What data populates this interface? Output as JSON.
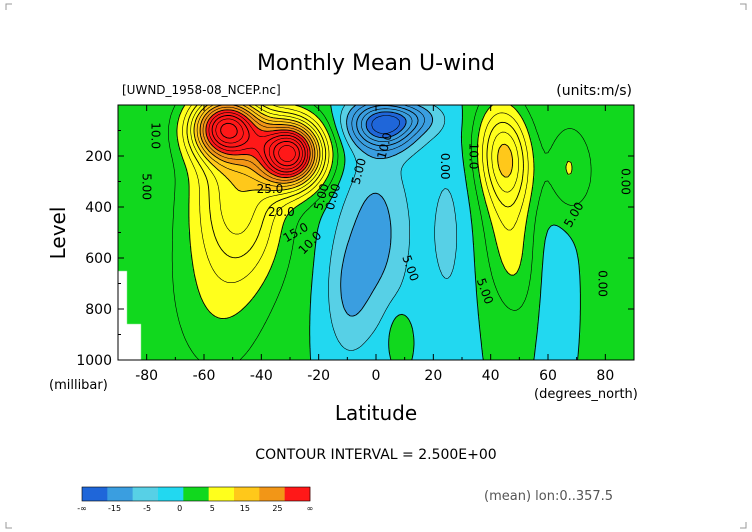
{
  "chart_data": {
    "type": "contour",
    "title": "Monthly Mean U-wind",
    "dataset_label": "[UWND_1958-08_NCEP.nc]",
    "units_label": "(units:m/s)",
    "ylabel": "Level",
    "yunit": "(millibar)",
    "xlabel": "Latitude",
    "xunit": "(degrees_north)",
    "xlim": [
      -90,
      90
    ],
    "ylim": [
      1000,
      0
    ],
    "xticks": [
      {
        "v": -80,
        "label": "-80"
      },
      {
        "v": -60,
        "label": "-60"
      },
      {
        "v": -40,
        "label": "-40"
      },
      {
        "v": -20,
        "label": "-20"
      },
      {
        "v": 0,
        "label": "0"
      },
      {
        "v": 20,
        "label": "20"
      },
      {
        "v": 40,
        "label": "40"
      },
      {
        "v": 60,
        "label": "60"
      },
      {
        "v": 80,
        "label": "80"
      }
    ],
    "yticks": [
      {
        "v": 200,
        "label": "200"
      },
      {
        "v": 400,
        "label": "400"
      },
      {
        "v": 600,
        "label": "600"
      },
      {
        "v": 800,
        "label": "800"
      },
      {
        "v": 1000,
        "label": "1000"
      }
    ],
    "contour_interval_text": "CONTOUR INTERVAL = 2.500E+00",
    "footer_text": "(mean) lon:0..357.5",
    "features": [
      {
        "type": "jet",
        "lat": -30,
        "p": 190,
        "max": 37,
        "sx": 11,
        "sp": 130,
        "skew": 0
      },
      {
        "type": "jet",
        "lat": -52,
        "p": 90,
        "max": 30,
        "sx": 12,
        "sp": 120,
        "skew": 0
      },
      {
        "type": "jet",
        "lat": -48,
        "p": 350,
        "max": 12,
        "sx": 15,
        "sp": 300,
        "skew": 0.15
      },
      {
        "type": "jet",
        "lat": -55,
        "p": 700,
        "max": 5,
        "sx": 18,
        "sp": 400,
        "skew": 0
      },
      {
        "type": "jet",
        "lat": 45,
        "p": 200,
        "max": 15,
        "sx": 9,
        "sp": 200,
        "skew": 0.12
      },
      {
        "type": "jet",
        "lat": 47,
        "p": 550,
        "max": 6,
        "sx": 9,
        "sp": 280,
        "skew": 0.15
      },
      {
        "type": "jet",
        "lat": 67,
        "p": 250,
        "max": 5,
        "sx": 7,
        "sp": 180,
        "skew": 0
      },
      {
        "type": "jet",
        "lat": 82,
        "p": 400,
        "max": 2,
        "sx": 10,
        "sp": 700,
        "skew": 0
      },
      {
        "type": "jet",
        "lat": -85,
        "p": 700,
        "max": 2,
        "sx": 6,
        "sp": 600,
        "skew": 0
      },
      {
        "type": "trough",
        "lat": 2,
        "p": 80,
        "max": -17,
        "sx": 11,
        "sp": 90,
        "skew": 0.2
      },
      {
        "type": "trough",
        "lat": 12,
        "p": 50,
        "max": -6,
        "sx": 10,
        "sp": 60,
        "skew": 0
      },
      {
        "type": "trough",
        "lat": 0,
        "p": 500,
        "max": -6,
        "sx": 12,
        "sp": 350,
        "skew": 0
      },
      {
        "type": "trough",
        "lat": -10,
        "p": 750,
        "max": -4,
        "sx": 8,
        "sp": 250,
        "skew": 0
      },
      {
        "type": "trough",
        "lat": 25,
        "p": 500,
        "max": -3,
        "sx": 8,
        "sp": 400,
        "skew": 0
      },
      {
        "type": "trough",
        "lat": 62,
        "p": 700,
        "max": -2,
        "sx": 8,
        "sp": 300,
        "skew": 0
      },
      {
        "type": "ridge",
        "lat": 8,
        "p": 900,
        "max": 3,
        "sx": 4,
        "sp": 100,
        "skew": 0
      }
    ],
    "contour_labels": [
      {
        "text": "10.0",
        "lat": -77,
        "p": 120,
        "rot": 90
      },
      {
        "text": "5.00",
        "lat": -80,
        "p": 320,
        "rot": 90
      },
      {
        "text": "25.0",
        "lat": -37,
        "p": 330,
        "rot": 0
      },
      {
        "text": "20.0",
        "lat": -33,
        "p": 420,
        "rot": 0
      },
      {
        "text": "15.0",
        "lat": -28,
        "p": 500,
        "rot": -30
      },
      {
        "text": "10.0",
        "lat": -23,
        "p": 540,
        "rot": -45
      },
      {
        "text": "5.00",
        "lat": -19,
        "p": 360,
        "rot": -75
      },
      {
        "text": "0.00",
        "lat": -15,
        "p": 360,
        "rot": -75
      },
      {
        "text": "5.00",
        "lat": -6,
        "p": 260,
        "rot": -75
      },
      {
        "text": "10.0",
        "lat": 3,
        "p": 160,
        "rot": -75
      },
      {
        "text": "5.00",
        "lat": 12,
        "p": 640,
        "rot": 70
      },
      {
        "text": "0.00",
        "lat": 24,
        "p": 240,
        "rot": 90
      },
      {
        "text": "10.0",
        "lat": 34,
        "p": 200,
        "rot": 90
      },
      {
        "text": "5.00",
        "lat": 38,
        "p": 730,
        "rot": 70
      },
      {
        "text": "5.00",
        "lat": 69,
        "p": 430,
        "rot": -60
      },
      {
        "text": "0.00",
        "lat": 79,
        "p": 700,
        "rot": 90
      },
      {
        "text": "0.00",
        "lat": 87,
        "p": 300,
        "rot": 90
      }
    ],
    "colorbar": {
      "ticks": [
        "-∞",
        "-15",
        "-5",
        "0",
        "5",
        "15",
        "25",
        "∞"
      ],
      "colors": [
        "#1f66d9",
        "#3a9ee0",
        "#57d0e6",
        "#22d8f0",
        "#11d81e",
        "#ffff1c",
        "#ffc81a",
        "#f29617",
        "#ff1818"
      ]
    }
  }
}
